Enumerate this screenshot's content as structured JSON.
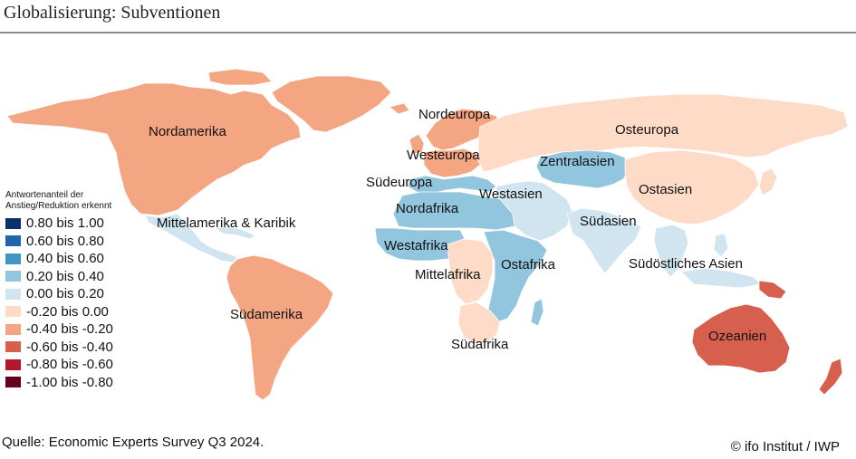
{
  "title": "Globalisierung: Subventionen",
  "legend": {
    "title_line1": "Antwortenanteil der",
    "title_line2": "Anstieg/Reduktion erkennt",
    "items": [
      {
        "label": "0.80 bis 1.00",
        "color": "#08306b"
      },
      {
        "label": "0.60 bis 0.80",
        "color": "#2166ac"
      },
      {
        "label": "0.40 bis 0.60",
        "color": "#4393c3"
      },
      {
        "label": "0.20 bis 0.40",
        "color": "#92c5de"
      },
      {
        "label": "0.00 bis 0.20",
        "color": "#d1e5f0"
      },
      {
        "label": "-0.20 bis 0.00",
        "color": "#fddbc7"
      },
      {
        "label": "-0.40 bis -0.20",
        "color": "#f4a582"
      },
      {
        "label": "-0.60 bis -0.40",
        "color": "#d6604d"
      },
      {
        "label": "-0.80 bis -0.60",
        "color": "#b2182b"
      },
      {
        "label": "-1.00 bis -0.80",
        "color": "#67001f"
      }
    ]
  },
  "regions": {
    "nordamerika": {
      "label": "Nordamerika",
      "color": "#f4a582"
    },
    "mittelamerika": {
      "label": "Mittelamerika & Karibik",
      "color": "#d1e5f0"
    },
    "suedamerika": {
      "label": "Südamerika",
      "color": "#f4a582"
    },
    "nordeuropa": {
      "label": "Nordeuropa",
      "color": "#f4a582"
    },
    "westeuropa": {
      "label": "Westeuropa",
      "color": "#f4a582"
    },
    "suedeuropa": {
      "label": "Südeuropa",
      "color": "#92c5de"
    },
    "osteuropa": {
      "label": "Osteuropa",
      "color": "#fddbc7"
    },
    "zentralasien": {
      "label": "Zentralasien",
      "color": "#92c5de"
    },
    "westasien": {
      "label": "Westasien",
      "color": "#d1e5f0"
    },
    "ostasien": {
      "label": "Ostasien",
      "color": "#fddbc7"
    },
    "suedasien": {
      "label": "Südasien",
      "color": "#d1e5f0"
    },
    "suedoestliches_asien": {
      "label": "Südöstliches Asien",
      "color": "#d1e5f0"
    },
    "nordafrika": {
      "label": "Nordafrika",
      "color": "#92c5de"
    },
    "westafrika": {
      "label": "Westafrika",
      "color": "#92c5de"
    },
    "mittelafrika": {
      "label": "Mittelafrika",
      "color": "#fddbc7"
    },
    "ostafrika": {
      "label": "Ostafrika",
      "color": "#92c5de"
    },
    "suedafrika": {
      "label": "Südafrika",
      "color": "#fddbc7"
    },
    "ozeanien": {
      "label": "Ozeanien",
      "color": "#d6604d"
    }
  },
  "source": "Quelle: Economic Experts Survey Q3 2024.",
  "credit": "© ifo Institut / IWP"
}
